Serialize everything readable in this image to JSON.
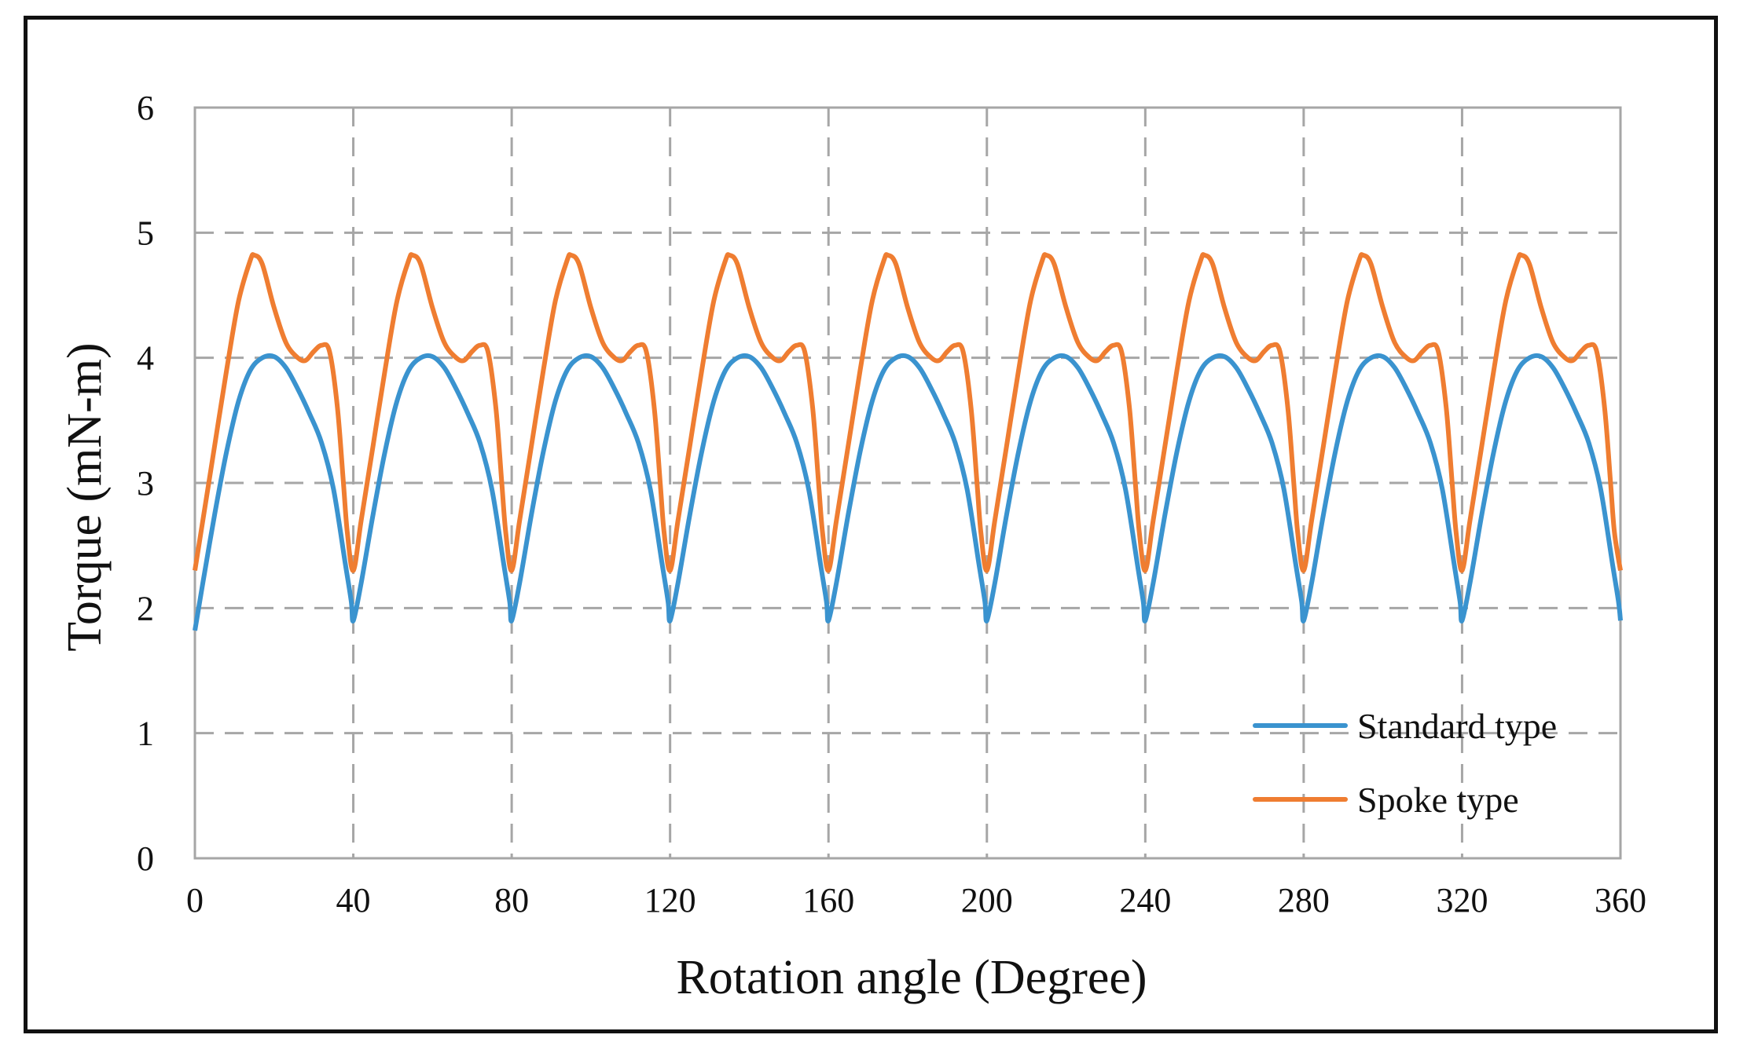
{
  "chart_data": {
    "type": "line",
    "title": "",
    "xlabel": "Rotation angle (Degree)",
    "ylabel": "Torque (mN-m)",
    "xlim": [
      0,
      360
    ],
    "ylim": [
      0,
      6
    ],
    "xticks": [
      0,
      40,
      80,
      120,
      160,
      200,
      240,
      280,
      320,
      360
    ],
    "yticks": [
      0,
      1,
      2,
      3,
      4,
      5,
      6
    ],
    "grid": true,
    "legend_position": "bottom-right",
    "period": 40,
    "series": [
      {
        "name": "Standard type",
        "color": "#3a93cf",
        "x": [
          0,
          2,
          5,
          8,
          11,
          14,
          17,
          20,
          23,
          26,
          29,
          32,
          35,
          38,
          39.5,
          40
        ],
        "values": [
          1.82,
          2.2,
          2.75,
          3.25,
          3.65,
          3.9,
          4.0,
          4.01,
          3.92,
          3.75,
          3.55,
          3.32,
          2.95,
          2.35,
          2.05,
          1.9
        ]
      },
      {
        "name": "Spoke type",
        "color": "#ef7d31",
        "x": [
          0,
          2,
          5,
          8,
          11,
          14,
          15,
          17,
          20,
          23,
          26,
          28,
          30,
          32,
          34,
          36,
          37.5,
          38.5,
          40
        ],
        "values": [
          2.3,
          2.7,
          3.3,
          3.9,
          4.45,
          4.78,
          4.82,
          4.75,
          4.4,
          4.12,
          4.0,
          3.98,
          4.05,
          4.1,
          4.05,
          3.6,
          3.0,
          2.6,
          2.3
        ]
      }
    ]
  }
}
